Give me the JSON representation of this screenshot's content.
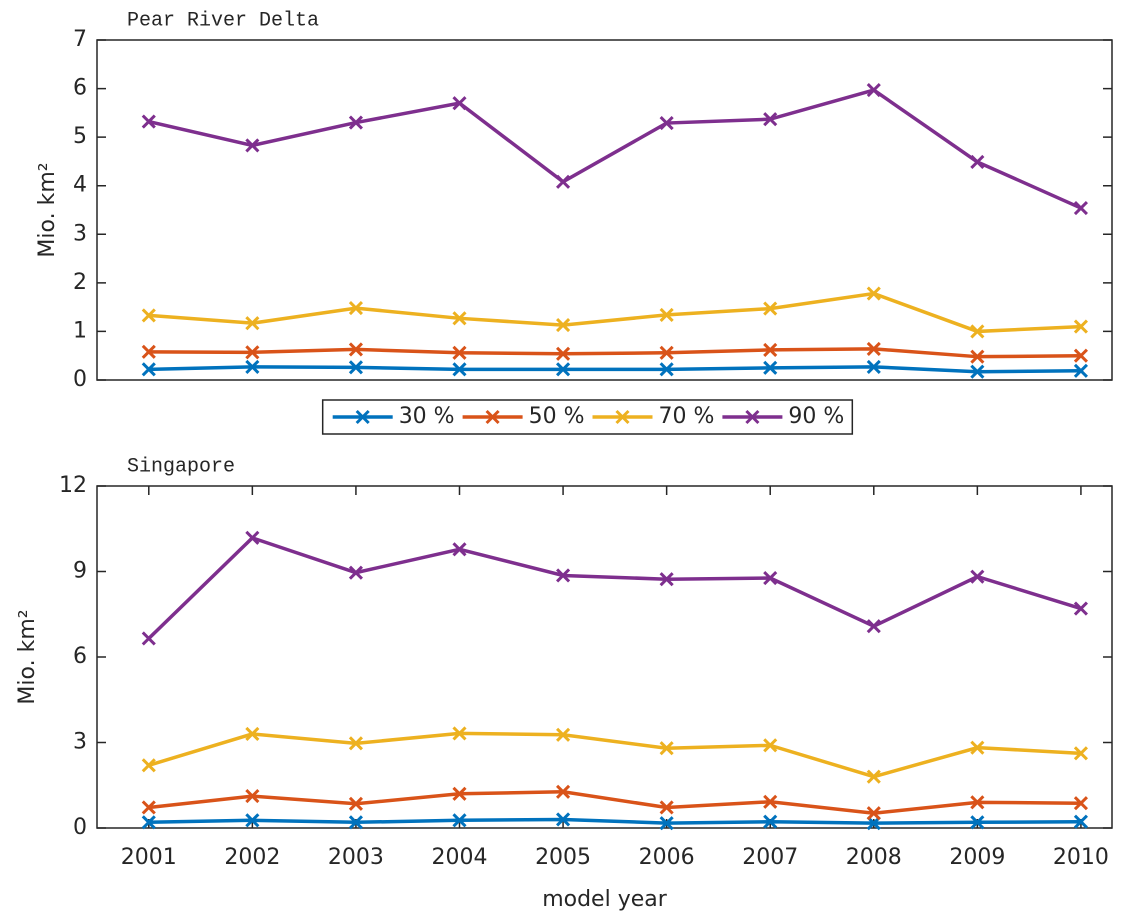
{
  "chart_data": [
    {
      "type": "line",
      "title": "Pear River Delta",
      "ylabel": "Mio. km²",
      "x": [
        2001,
        2002,
        2003,
        2004,
        2005,
        2006,
        2007,
        2008,
        2009,
        2010
      ],
      "xlim": [
        2000.5,
        2010.3
      ],
      "ylim": [
        0,
        7
      ],
      "yticks": [
        0,
        1,
        2,
        3,
        4,
        5,
        6,
        7
      ],
      "legend": "bottom",
      "series": [
        {
          "name": "30 %",
          "color": "#0072BD",
          "values": [
            0.22,
            0.27,
            0.26,
            0.22,
            0.22,
            0.22,
            0.25,
            0.27,
            0.17,
            0.19
          ]
        },
        {
          "name": "50 %",
          "color": "#D95319",
          "values": [
            0.58,
            0.57,
            0.63,
            0.56,
            0.54,
            0.56,
            0.62,
            0.64,
            0.48,
            0.5
          ]
        },
        {
          "name": "70 %",
          "color": "#EDB120",
          "values": [
            1.33,
            1.17,
            1.48,
            1.27,
            1.13,
            1.34,
            1.47,
            1.78,
            1.0,
            1.1
          ]
        },
        {
          "name": "90 %",
          "color": "#7E2F8E",
          "values": [
            5.32,
            4.83,
            5.3,
            5.7,
            4.08,
            5.29,
            5.37,
            5.97,
            4.49,
            3.54
          ]
        }
      ]
    },
    {
      "type": "line",
      "title": "Singapore",
      "ylabel": "Mio. km²",
      "xlabel": "model year",
      "x": [
        2001,
        2002,
        2003,
        2004,
        2005,
        2006,
        2007,
        2008,
        2009,
        2010
      ],
      "xlim": [
        2000.5,
        2010.3
      ],
      "xticks": [
        2001,
        2002,
        2003,
        2004,
        2005,
        2006,
        2007,
        2008,
        2009,
        2010
      ],
      "ylim": [
        0,
        12
      ],
      "yticks": [
        0,
        3,
        6,
        9,
        12
      ],
      "series": [
        {
          "color": "#0072BD",
          "values": [
            0.2,
            0.27,
            0.2,
            0.27,
            0.3,
            0.17,
            0.22,
            0.17,
            0.2,
            0.22
          ]
        },
        {
          "color": "#D95319",
          "values": [
            0.72,
            1.12,
            0.85,
            1.2,
            1.27,
            0.72,
            0.92,
            0.52,
            0.9,
            0.87
          ]
        },
        {
          "color": "#EDB120",
          "values": [
            2.2,
            3.3,
            2.97,
            3.32,
            3.27,
            2.8,
            2.9,
            1.8,
            2.82,
            2.62
          ]
        },
        {
          "color": "#7E2F8E",
          "values": [
            6.65,
            10.18,
            8.96,
            9.78,
            8.86,
            8.73,
            8.77,
            7.08,
            8.82,
            7.7
          ]
        }
      ]
    }
  ]
}
